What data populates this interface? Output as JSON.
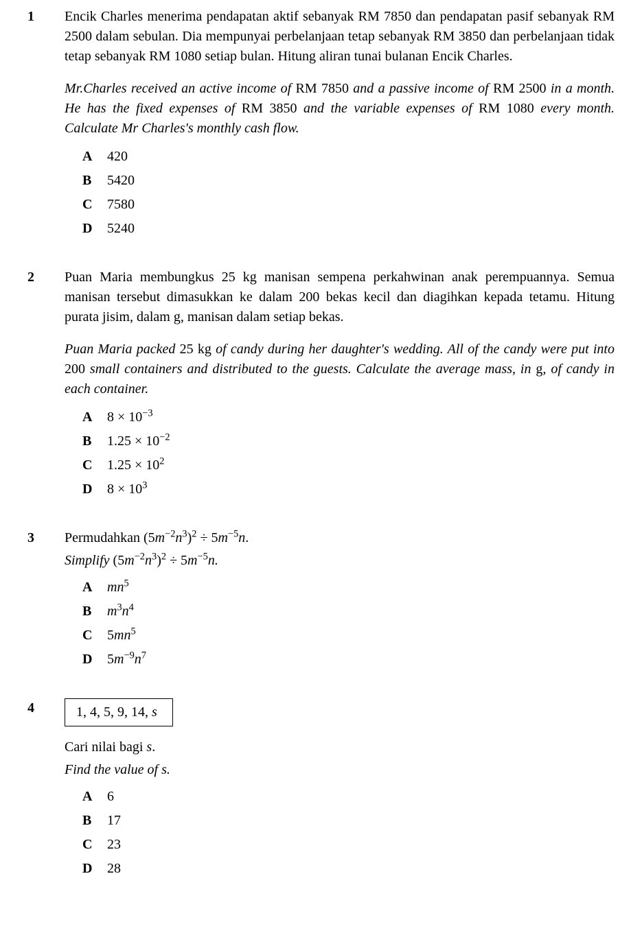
{
  "questions": [
    {
      "number": "1",
      "stem_my": "Encik Charles menerima pendapatan aktif sebanyak RM 7850 dan pendapatan pasif sebanyak RM 2500 dalam sebulan. Dia mempunyai perbelanjaan tetap sebanyak RM 3850 dan perbelanjaan tidak tetap sebanyak RM 1080 setiap bulan. Hitung aliran tunai bulanan Encik Charles.",
      "stem_en_html": "Mr.Charles received an active income of <span class=\"upright\">RM 7850</span> and a passive income of <span class=\"upright\">RM 2500</span> in a month. He has the fixed expenses of <span class=\"upright\">RM 3850</span> and the variable expenses of <span class=\"upright\">RM 1080</span> every month. Calculate Mr Charles's monthly cash flow.",
      "options": [
        {
          "letter": "A",
          "html": "420"
        },
        {
          "letter": "B",
          "html": "5420"
        },
        {
          "letter": "C",
          "html": "7580"
        },
        {
          "letter": "D",
          "html": "5240"
        }
      ]
    },
    {
      "number": "2",
      "stem_my": "Puan Maria membungkus 25 kg manisan sempena perkahwinan anak perempuannya. Semua manisan tersebut dimasukkan ke dalam 200 bekas kecil dan diagihkan kepada tetamu. Hitung purata jisim, dalam g, manisan dalam setiap bekas.",
      "stem_en_html": "Puan Maria packed <span class=\"upright\">25 kg</span> of candy during her daughter's wedding. All of the candy were put into <span class=\"upright\">200</span> small containers and distributed to the guests. Calculate the average mass, in <span class=\"upright\">g</span>, of candy in each container.",
      "options": [
        {
          "letter": "A",
          "html": "8 &times; 10<sup>&minus;3</sup>"
        },
        {
          "letter": "B",
          "html": "1.25 &times; 10<sup>&minus;2</sup>"
        },
        {
          "letter": "C",
          "html": "1.25 &times; 10<sup>2</sup>"
        },
        {
          "letter": "D",
          "html": "8 &times; 10<sup>3</sup>"
        }
      ]
    },
    {
      "number": "3",
      "stem_my_html": "Permudahkan <span class=\"mathline\">(5<i>m</i><sup>&minus;2</sup><i>n</i><sup>3</sup>)<sup>2</sup> &divide; 5<i>m</i><sup>&minus;5</sup><i>n</i></span>.",
      "stem_en_html": "Simplify <span class=\"upright mathline\">(5<i>m</i><sup>&minus;2</sup><i>n</i><sup>3</sup>)<sup>2</sup> &divide; 5<i>m</i><sup>&minus;5</sup><i>n</i></span>.",
      "options": [
        {
          "letter": "A",
          "html": "<i>mn</i><sup>5</sup>"
        },
        {
          "letter": "B",
          "html": "<i>m</i><sup>3</sup><i>n</i><sup>4</sup>"
        },
        {
          "letter": "C",
          "html": "5<i>mn</i><sup>5</sup>"
        },
        {
          "letter": "D",
          "html": "5<i>m</i><sup>&minus;9</sup><i>n</i><sup>7</sup>"
        }
      ]
    },
    {
      "number": "4",
      "boxed_html": "1, 4, 5, 9, 14, <i>s</i>",
      "line_my": "Cari nilai bagi <i>s</i>.",
      "line_en": "Find the value of s.",
      "options": [
        {
          "letter": "A",
          "html": "6"
        },
        {
          "letter": "B",
          "html": "17"
        },
        {
          "letter": "C",
          "html": "23"
        },
        {
          "letter": "D",
          "html": "28"
        }
      ]
    }
  ]
}
